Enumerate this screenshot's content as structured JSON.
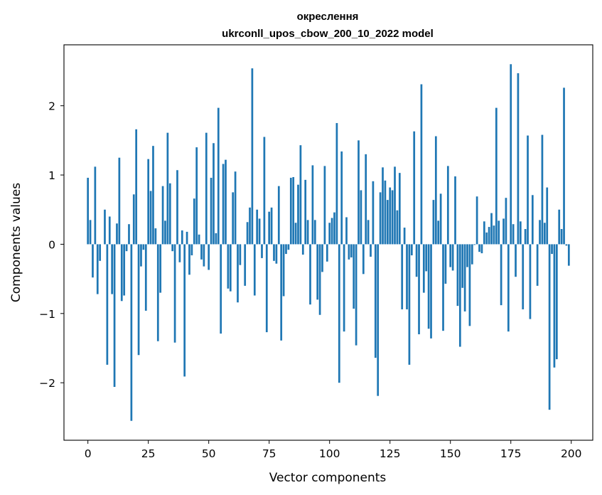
{
  "chart_data": {
    "type": "bar",
    "title": "окреслення",
    "subtitle": "ukrconll_upos_cbow_200_10_2022 model",
    "xlabel": "Vector components",
    "ylabel": "Components values",
    "xlim": [
      -9.9,
      208.9
    ],
    "ylim": [
      -2.83,
      2.88
    ],
    "xticks": [
      0,
      25,
      50,
      75,
      100,
      125,
      150,
      175,
      200
    ],
    "yticks": [
      -2,
      -1,
      0,
      1,
      2
    ],
    "ytick_labels": [
      "−2",
      "−1",
      "0",
      "1",
      "2"
    ],
    "bar_color": "#1f77b4",
    "grid": false,
    "legend": "none",
    "x": [
      0,
      1,
      2,
      3,
      4,
      5,
      6,
      7,
      8,
      9,
      10,
      11,
      12,
      13,
      14,
      15,
      16,
      17,
      18,
      19,
      20,
      21,
      22,
      23,
      24,
      25,
      26,
      27,
      28,
      29,
      30,
      31,
      32,
      33,
      34,
      35,
      36,
      37,
      38,
      39,
      40,
      41,
      42,
      43,
      44,
      45,
      46,
      47,
      48,
      49,
      50,
      51,
      52,
      53,
      54,
      55,
      56,
      57,
      58,
      59,
      60,
      61,
      62,
      63,
      64,
      65,
      66,
      67,
      68,
      69,
      70,
      71,
      72,
      73,
      74,
      75,
      76,
      77,
      78,
      79,
      80,
      81,
      82,
      83,
      84,
      85,
      86,
      87,
      88,
      89,
      90,
      91,
      92,
      93,
      94,
      95,
      96,
      97,
      98,
      99,
      100,
      101,
      102,
      103,
      104,
      105,
      106,
      107,
      108,
      109,
      110,
      111,
      112,
      113,
      114,
      115,
      116,
      117,
      118,
      119,
      120,
      121,
      122,
      123,
      124,
      125,
      126,
      127,
      128,
      129,
      130,
      131,
      132,
      133,
      134,
      135,
      136,
      137,
      138,
      139,
      140,
      141,
      142,
      143,
      144,
      145,
      146,
      147,
      148,
      149,
      150,
      151,
      152,
      153,
      154,
      155,
      156,
      157,
      158,
      159,
      160,
      161,
      162,
      163,
      164,
      165,
      166,
      167,
      168,
      169,
      170,
      171,
      172,
      173,
      174,
      175,
      176,
      177,
      178,
      179,
      180,
      181,
      182,
      183,
      184,
      185,
      186,
      187,
      188,
      189,
      190,
      191,
      192,
      193,
      194,
      195,
      196,
      197,
      198,
      199
    ],
    "values": [
      0.96,
      0.35,
      -0.48,
      1.12,
      -0.72,
      -0.24,
      0,
      0.5,
      -1.74,
      0.4,
      -0.72,
      -2.06,
      0.3,
      1.25,
      -0.82,
      -0.74,
      -0.1,
      0.29,
      -2.55,
      0.72,
      1.66,
      -1.6,
      -0.32,
      -0.08,
      -0.96,
      1.23,
      0.77,
      1.42,
      0.23,
      -1.4,
      -0.7,
      0.84,
      0.34,
      1.61,
      0.88,
      -0.1,
      -1.42,
      1.07,
      -0.26,
      0.2,
      -1.91,
      0.18,
      -0.44,
      -0.16,
      0.66,
      1.4,
      0.14,
      -0.22,
      -0.32,
      1.61,
      -0.37,
      0.96,
      1.46,
      0.16,
      1.97,
      -1.29,
      1.16,
      1.22,
      -0.64,
      -0.68,
      0.75,
      1.05,
      -0.84,
      -0.3,
      0,
      -0.6,
      0.32,
      0.53,
      2.54,
      -0.74,
      0.5,
      0.37,
      -0.2,
      1.55,
      -1.27,
      0.47,
      0.53,
      -0.24,
      -0.28,
      0.84,
      -1.39,
      -0.75,
      -0.14,
      -0.08,
      0.96,
      0.97,
      0.31,
      0.86,
      1.43,
      -0.15,
      0.93,
      0.35,
      -0.87,
      1.14,
      0.35,
      -0.8,
      -1.02,
      -0.4,
      1.13,
      -0.25,
      0.31,
      0.38,
      0.46,
      1.75,
      -2.0,
      1.34,
      -1.26,
      0.39,
      -0.22,
      -0.19,
      -0.93,
      -1.46,
      1.5,
      0.78,
      -0.43,
      1.3,
      0.35,
      -0.18,
      0.91,
      -1.64,
      -2.19,
      0.75,
      1.11,
      0.92,
      0.64,
      0.82,
      0.78,
      1.12,
      0.49,
      1.03,
      -0.94,
      0.24,
      -0.94,
      -1.74,
      -0.16,
      1.63,
      -0.47,
      -1.3,
      2.31,
      -0.7,
      -0.39,
      -1.22,
      -1.36,
      0.64,
      1.56,
      0.34,
      0.73,
      -1.25,
      -0.57,
      1.13,
      -0.33,
      -0.38,
      0.98,
      -0.89,
      -1.48,
      -0.63,
      -0.97,
      -0.33,
      -1.18,
      -0.29,
      -0.01,
      0.69,
      -0.11,
      -0.13,
      0.33,
      0.17,
      0.25,
      0.45,
      0.27,
      1.97,
      0.34,
      -0.88,
      0.37,
      0.67,
      -1.26,
      2.6,
      0.29,
      -0.47,
      2.47,
      0.33,
      -0.94,
      0.22,
      1.57,
      -1.08,
      0.71,
      0,
      -0.6,
      0.35,
      1.58,
      0.31,
      0.82,
      -2.39,
      -0.14,
      -1.78,
      -1.66,
      0.5,
      0.22,
      2.26,
      -0.02,
      -0.31
    ]
  }
}
